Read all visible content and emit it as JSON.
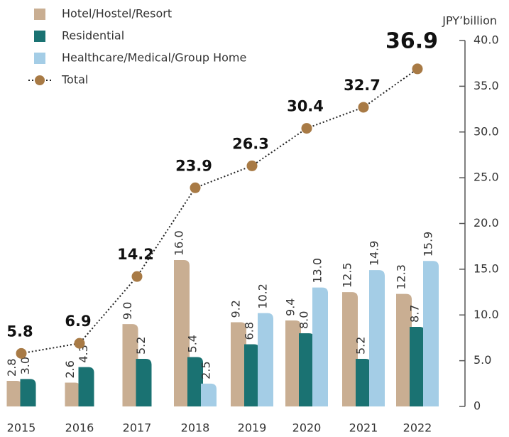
{
  "chart_data": {
    "type": "bar_line",
    "unit_label": "JPY’billion",
    "categories": [
      "2015",
      "2016",
      "2017",
      "2018",
      "2019",
      "2020",
      "2021",
      "2022"
    ],
    "series": [
      {
        "name": "Hotel/Hostel/Resort",
        "color": "#c9ae92",
        "values": [
          2.8,
          2.6,
          9.0,
          16.0,
          9.2,
          9.4,
          12.5,
          12.3
        ],
        "value_labels": [
          "2.8",
          "2.6",
          "9.0",
          "16.0",
          "9.2",
          "9.4",
          "12.5",
          "12.3"
        ]
      },
      {
        "name": "Residential",
        "color": "#1a7272",
        "values": [
          3.0,
          4.3,
          5.2,
          5.4,
          6.8,
          8.0,
          5.2,
          8.7
        ],
        "value_labels": [
          "3.0",
          "4.3",
          "5.2",
          "5.4",
          "6.8",
          "8.0",
          "5.2",
          "8.7"
        ]
      },
      {
        "name": "Healthcare/Medical/Group Home",
        "color": "#a4cde6",
        "values": [
          null,
          null,
          null,
          2.5,
          10.2,
          13.0,
          14.9,
          15.9
        ],
        "value_labels": [
          null,
          null,
          null,
          "2.5",
          "10.2",
          "13.0",
          "14.9",
          "15.9"
        ]
      },
      {
        "name": "Total",
        "color": "#a87a45",
        "type": "line",
        "values": [
          5.8,
          6.9,
          14.2,
          23.9,
          26.3,
          30.4,
          32.7,
          36.9
        ]
      }
    ],
    "ylim": [
      0,
      40
    ],
    "yticks": [
      0,
      {
        "value": 5,
        "label": "5.0"
      },
      {
        "value": 10,
        "label": "10.0"
      },
      {
        "value": 15,
        "label": "15.0"
      },
      {
        "value": 20,
        "label": "20.0"
      },
      {
        "value": 25,
        "label": "25.0"
      },
      {
        "value": 30,
        "label": "30.0"
      },
      {
        "value": 35,
        "label": "35.0"
      },
      {
        "value": 40,
        "label": "40.0"
      }
    ],
    "legend": "top-left"
  }
}
